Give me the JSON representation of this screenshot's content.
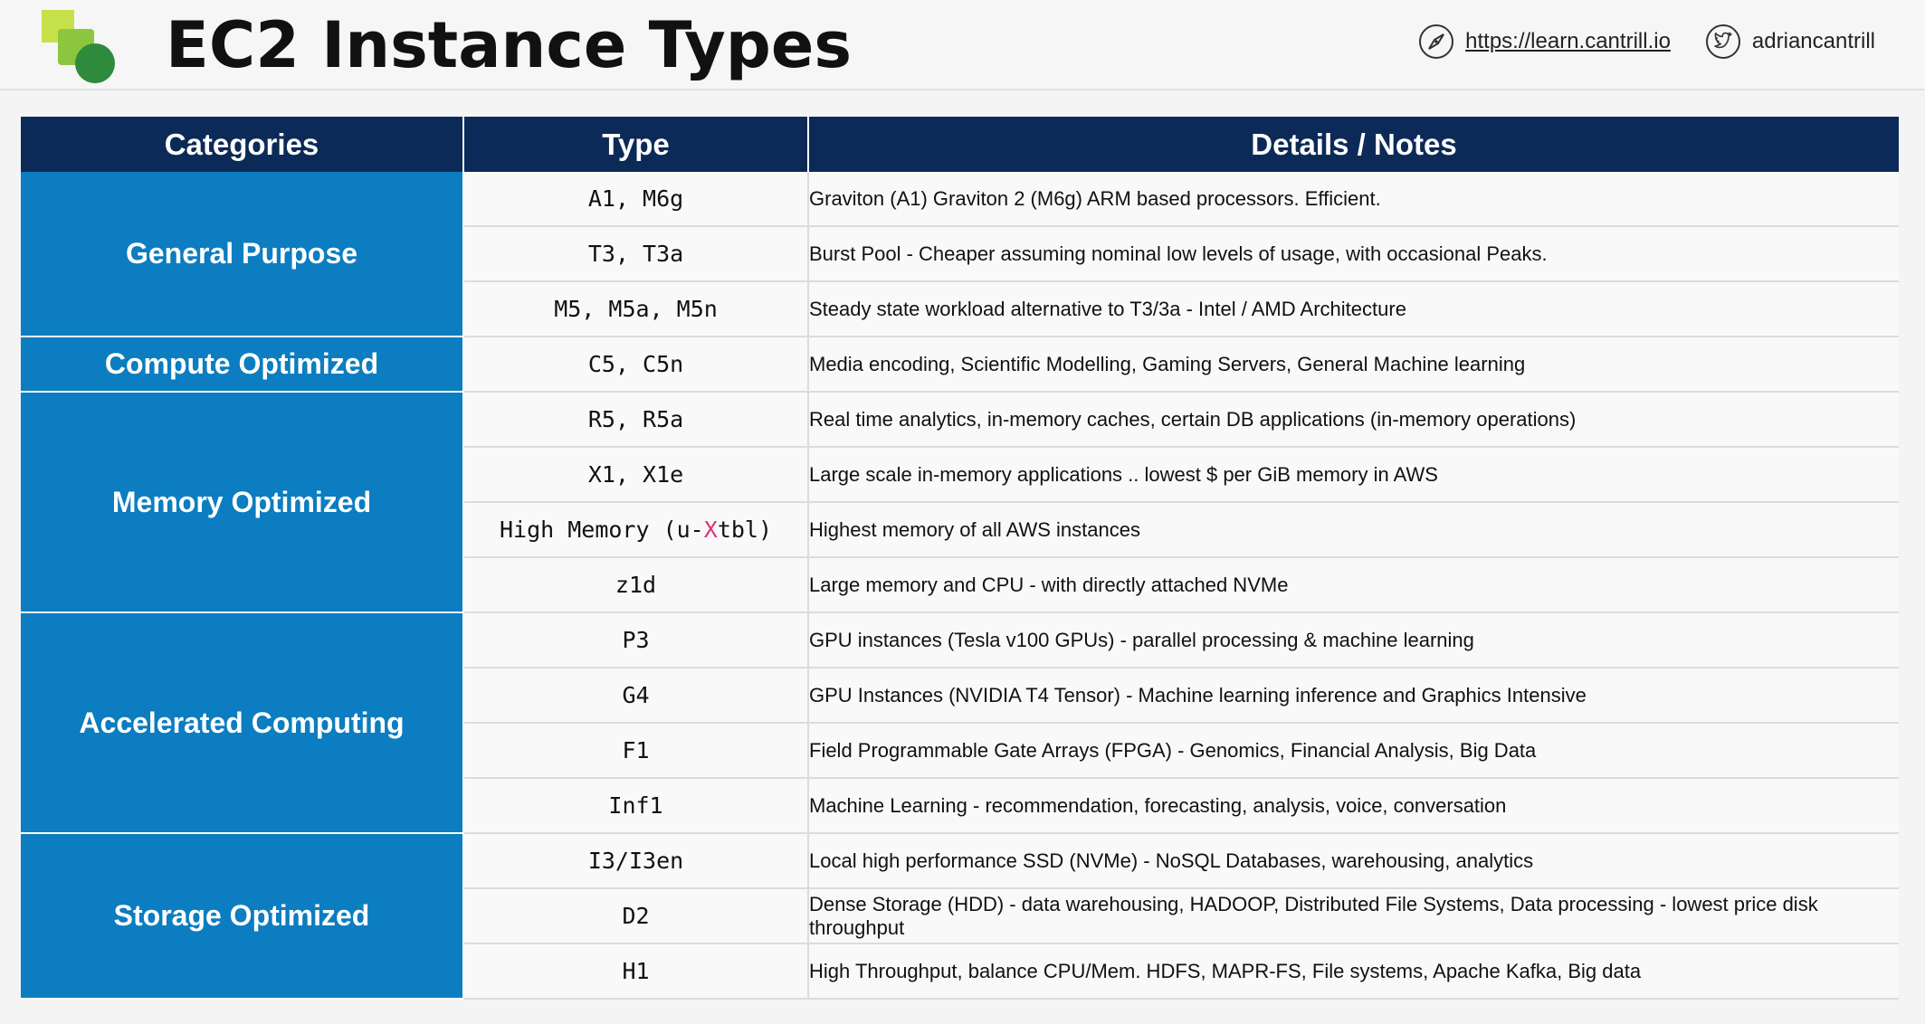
{
  "header": {
    "title": "EC2 Instance Types",
    "website": "https://learn.cantrill.io",
    "twitter": "adriancantrill"
  },
  "icons": {
    "website_icon": "compass-icon",
    "twitter_icon": "twitter-bird-icon",
    "logo": "cantrill-logo"
  },
  "colors": {
    "header_bg": "#0c2a57",
    "category_bg": "#0b7dc0",
    "highlight": "#e0317a"
  },
  "table": {
    "headers": [
      "Categories",
      "Type",
      "Details / Notes"
    ],
    "groups": [
      {
        "category": "General Purpose",
        "rows": [
          {
            "type": "A1, M6g",
            "note": "Graviton (A1) Graviton 2 (M6g) ARM based processors. Efficient."
          },
          {
            "type": "T3, T3a",
            "note": "Burst Pool - Cheaper assuming nominal low levels of usage, with occasional Peaks."
          },
          {
            "type": "M5, M5a, M5n",
            "note": "Steady state workload alternative to T3/3a - Intel / AMD Architecture"
          }
        ]
      },
      {
        "category": "Compute Optimized",
        "rows": [
          {
            "type": "C5, C5n",
            "note": "Media encoding, Scientific Modelling, Gaming Servers, General Machine learning"
          }
        ]
      },
      {
        "category": "Memory Optimized",
        "rows": [
          {
            "type": "R5, R5a",
            "note": "Real time analytics, in-memory caches, certain DB applications (in-memory operations)"
          },
          {
            "type": "X1, X1e",
            "note": "Large scale in-memory applications .. lowest $ per GiB memory in AWS"
          },
          {
            "type_prefix": "High Memory (u-",
            "type_highlight": "X",
            "type_suffix": "tbl)",
            "note": "Highest memory of all AWS instances"
          },
          {
            "type": "z1d",
            "note": "Large memory and CPU - with directly attached NVMe"
          }
        ]
      },
      {
        "category": "Accelerated Computing",
        "rows": [
          {
            "type": "P3",
            "note": "GPU instances (Tesla v100 GPUs) - parallel processing & machine learning"
          },
          {
            "type": "G4",
            "note": "GPU Instances (NVIDIA T4 Tensor) - Machine learning inference and Graphics Intensive"
          },
          {
            "type": "F1",
            "note": "Field Programmable Gate Arrays (FPGA) - Genomics, Financial Analysis, Big Data"
          },
          {
            "type": "Inf1",
            "note": "Machine Learning - recommendation, forecasting, analysis, voice, conversation"
          }
        ]
      },
      {
        "category": "Storage Optimized",
        "rows": [
          {
            "type": "I3/I3en",
            "note": "Local high performance SSD (NVMe) - NoSQL Databases, warehousing, analytics"
          },
          {
            "type": "D2",
            "note": "Dense Storage (HDD) - data warehousing, HADOOP, Distributed File Systems, Data processing - lowest price disk throughput"
          },
          {
            "type": "H1",
            "note": "High Throughput, balance CPU/Mem. HDFS, MAPR-FS, File systems, Apache Kafka, Big data"
          }
        ]
      }
    ]
  }
}
